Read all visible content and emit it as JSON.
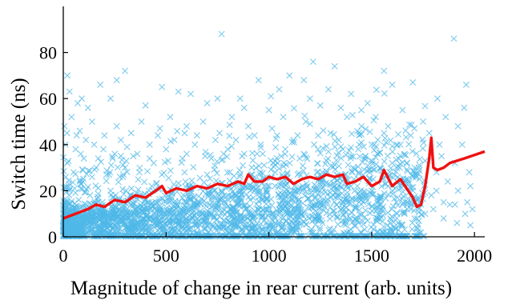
{
  "chart_data": {
    "type": "scatter",
    "title": "",
    "xlabel": "Magnitude of change in rear current (arb. units)",
    "ylabel": "Switch time (ns)",
    "xlim": [
      0,
      2050
    ],
    "ylim": [
      0,
      100
    ],
    "xticks": [
      0,
      500,
      1000,
      1500,
      2000
    ],
    "xtick_labels": [
      "0",
      "500",
      "1000",
      "1500",
      "2000"
    ],
    "yticks": [
      0,
      20,
      40,
      60,
      80
    ],
    "ytick_labels": [
      "0",
      "20",
      "40",
      "60",
      "80"
    ],
    "grid": false,
    "legend": "none",
    "series": [
      {
        "kind": "scatter",
        "marker": "x",
        "color": "#4fb8e8",
        "points": [
          [
            770,
            88
          ],
          [
            1900,
            86
          ],
          [
            1215,
            76
          ],
          [
            300,
            72
          ],
          [
            1320,
            74
          ],
          [
            1100,
            70
          ],
          [
            1560,
            72
          ],
          [
            20,
            70
          ],
          [
            180,
            66
          ],
          [
            950,
            68
          ],
          [
            1050,
            64
          ],
          [
            1700,
            67
          ],
          [
            1960,
            66
          ],
          [
            620,
            62
          ],
          [
            860,
            60
          ],
          [
            1400,
            62
          ],
          [
            1480,
            58
          ],
          [
            1600,
            66
          ],
          [
            1820,
            60
          ],
          [
            1650,
            55
          ],
          [
            90,
            60
          ],
          [
            400,
            57
          ],
          [
            700,
            58
          ],
          [
            1250,
            57
          ],
          [
            1750,
            50
          ],
          [
            1860,
            52
          ],
          [
            1950,
            56
          ],
          [
            1920,
            48
          ],
          [
            1780,
            45
          ],
          [
            1940,
            40
          ],
          [
            1975,
            28
          ],
          [
            1980,
            22
          ],
          [
            1850,
            15
          ],
          [
            1905,
            14
          ],
          [
            1955,
            10
          ],
          [
            1980,
            5
          ],
          [
            1700,
            20
          ],
          [
            1620,
            15
          ],
          [
            1760,
            10
          ],
          [
            1720,
            8
          ],
          [
            1560,
            45
          ],
          [
            1500,
            40
          ],
          [
            1450,
            48
          ],
          [
            1380,
            52
          ],
          [
            1300,
            45
          ],
          [
            1180,
            50
          ],
          [
            1120,
            42
          ],
          [
            1000,
            55
          ],
          [
            900,
            48
          ],
          [
            820,
            52
          ],
          [
            760,
            45
          ],
          [
            680,
            50
          ],
          [
            600,
            48
          ],
          [
            520,
            52
          ],
          [
            460,
            44
          ],
          [
            380,
            50
          ],
          [
            330,
            45
          ],
          [
            260,
            48
          ],
          [
            200,
            44
          ],
          [
            140,
            50
          ],
          [
            80,
            46
          ],
          [
            40,
            52
          ],
          [
            30,
            63
          ],
          [
            70,
            58
          ],
          [
            120,
            56
          ],
          [
            230,
            60
          ],
          [
            560,
            63
          ],
          [
            1350,
            56
          ],
          [
            1520,
            52
          ],
          [
            1580,
            48
          ],
          [
            1690,
            44
          ],
          [
            1660,
            36
          ],
          [
            1600,
            32
          ],
          [
            1540,
            30
          ],
          [
            1470,
            35
          ],
          [
            1410,
            30
          ],
          [
            1360,
            38
          ],
          [
            1280,
            33
          ],
          [
            1220,
            40
          ],
          [
            1150,
            34
          ],
          [
            1080,
            38
          ],
          [
            1020,
            32
          ],
          [
            960,
            40
          ],
          [
            880,
            36
          ],
          [
            800,
            38
          ],
          [
            720,
            34
          ],
          [
            640,
            40
          ],
          [
            580,
            34
          ],
          [
            500,
            38
          ],
          [
            440,
            32
          ],
          [
            360,
            36
          ],
          [
            300,
            30
          ],
          [
            240,
            34
          ],
          [
            160,
            30
          ],
          [
            100,
            34
          ],
          [
            50,
            28
          ],
          [
            20,
            32
          ],
          [
            10,
            40
          ],
          [
            60,
            38
          ],
          [
            150,
            40
          ],
          [
            280,
            42
          ],
          [
            420,
            40
          ],
          [
            540,
            42
          ],
          [
            650,
            44
          ],
          [
            740,
            42
          ],
          [
            840,
            42
          ],
          [
            930,
            44
          ],
          [
            1040,
            44
          ],
          [
            1140,
            44
          ],
          [
            1240,
            44
          ],
          [
            1340,
            42
          ],
          [
            1440,
            40
          ],
          [
            1640,
            40
          ],
          [
            1730,
            30
          ],
          [
            1700,
            26
          ],
          [
            1680,
            24
          ],
          [
            1640,
            25
          ],
          [
            1580,
            22
          ],
          [
            1500,
            20
          ],
          [
            1430,
            22
          ],
          [
            1330,
            20
          ],
          [
            1230,
            22
          ],
          [
            1130,
            20
          ],
          [
            1030,
            22
          ],
          [
            930,
            20
          ],
          [
            830,
            22
          ],
          [
            730,
            20
          ],
          [
            630,
            22
          ],
          [
            530,
            20
          ],
          [
            430,
            22
          ],
          [
            330,
            18
          ],
          [
            230,
            20
          ],
          [
            130,
            18
          ],
          [
            30,
            20
          ],
          [
            15,
            15
          ],
          [
            45,
            12
          ],
          [
            75,
            16
          ],
          [
            110,
            14
          ],
          [
            190,
            15
          ],
          [
            270,
            14
          ],
          [
            350,
            12
          ],
          [
            450,
            14
          ],
          [
            550,
            12
          ],
          [
            650,
            14
          ],
          [
            750,
            12
          ],
          [
            850,
            14
          ],
          [
            950,
            12
          ],
          [
            1050,
            14
          ],
          [
            1150,
            12
          ],
          [
            1250,
            14
          ],
          [
            1350,
            12
          ],
          [
            1450,
            14
          ],
          [
            1550,
            12
          ],
          [
            1650,
            14
          ],
          [
            1740,
            14
          ],
          [
            1800,
            12
          ],
          [
            1850,
            8
          ],
          [
            1880,
            14
          ],
          [
            1920,
            20
          ],
          [
            1790,
            18
          ],
          [
            1720,
            4
          ],
          [
            1630,
            6
          ],
          [
            1530,
            8
          ],
          [
            1430,
            7
          ],
          [
            1330,
            9
          ],
          [
            1230,
            8
          ],
          [
            1130,
            9
          ],
          [
            1030,
            8
          ],
          [
            930,
            9
          ],
          [
            830,
            8
          ],
          [
            730,
            9
          ],
          [
            630,
            8
          ],
          [
            530,
            9
          ],
          [
            430,
            8
          ],
          [
            330,
            7
          ],
          [
            230,
            8
          ],
          [
            130,
            7
          ],
          [
            60,
            6
          ],
          [
            25,
            4
          ],
          [
            5,
            8
          ],
          [
            8,
            2
          ],
          [
            35,
            1
          ],
          [
            90,
            3
          ],
          [
            170,
            5
          ],
          [
            260,
            6
          ],
          [
            360,
            6
          ],
          [
            470,
            7
          ],
          [
            580,
            7
          ],
          [
            690,
            7
          ],
          [
            800,
            7
          ],
          [
            910,
            7
          ],
          [
            1020,
            7
          ],
          [
            1130,
            7
          ],
          [
            1240,
            7
          ],
          [
            1360,
            7
          ],
          [
            1480,
            7
          ],
          [
            1590,
            8
          ],
          [
            1660,
            10
          ],
          [
            1690,
            12
          ],
          [
            12,
            26
          ],
          [
            28,
            23
          ],
          [
            55,
            21
          ],
          [
            95,
            24
          ],
          [
            140,
            26
          ],
          [
            210,
            27
          ],
          [
            290,
            26
          ],
          [
            370,
            28
          ],
          [
            480,
            27
          ],
          [
            590,
            28
          ],
          [
            700,
            27
          ],
          [
            810,
            28
          ],
          [
            920,
            27
          ],
          [
            1030,
            28
          ],
          [
            1140,
            27
          ],
          [
            1260,
            28
          ],
          [
            1370,
            27
          ],
          [
            1490,
            28
          ],
          [
            1610,
            27
          ],
          [
            1530,
            36
          ],
          [
            1400,
            35
          ],
          [
            1290,
            37
          ],
          [
            1170,
            36
          ],
          [
            1060,
            35
          ],
          [
            970,
            36
          ],
          [
            870,
            35
          ],
          [
            780,
            36
          ],
          [
            690,
            35
          ],
          [
            600,
            36
          ],
          [
            510,
            33
          ],
          [
            420,
            34
          ],
          [
            340,
            35
          ],
          [
            250,
            36
          ],
          [
            170,
            34
          ],
          [
            85,
            36
          ],
          [
            5,
            48
          ],
          [
            18,
            45
          ],
          [
            110,
            42
          ],
          [
            65,
            44
          ],
          [
            195,
            38
          ],
          [
            310,
            39
          ],
          [
            470,
            47
          ],
          [
            590,
            45
          ],
          [
            880,
            56
          ],
          [
            1070,
            52
          ],
          [
            1200,
            60
          ],
          [
            1450,
            55
          ],
          [
            1290,
            64
          ],
          [
            1010,
            61
          ],
          [
            750,
            60
          ],
          [
            480,
            65
          ],
          [
            260,
            68
          ],
          [
            1170,
            68
          ],
          [
            1830,
            40
          ],
          [
            1905,
            32
          ],
          [
            1815,
            28
          ],
          [
            1760,
            33
          ],
          [
            1965,
            15
          ],
          [
            1915,
            6
          ],
          [
            1870,
            24
          ],
          [
            1755,
            22
          ],
          [
            1815,
            20
          ],
          [
            1990,
            12
          ],
          [
            1840,
            35
          ]
        ]
      },
      {
        "kind": "line",
        "name": "",
        "color": "#ee1111",
        "points": [
          [
            0,
            8
          ],
          [
            60,
            10
          ],
          [
            120,
            12
          ],
          [
            160,
            14
          ],
          [
            200,
            13
          ],
          [
            250,
            16
          ],
          [
            300,
            15
          ],
          [
            350,
            18
          ],
          [
            400,
            17
          ],
          [
            450,
            20
          ],
          [
            480,
            22
          ],
          [
            500,
            19
          ],
          [
            550,
            21
          ],
          [
            600,
            20
          ],
          [
            650,
            22
          ],
          [
            700,
            21
          ],
          [
            750,
            23
          ],
          [
            800,
            22
          ],
          [
            850,
            24
          ],
          [
            880,
            23
          ],
          [
            900,
            27
          ],
          [
            930,
            24
          ],
          [
            970,
            24
          ],
          [
            1000,
            26
          ],
          [
            1040,
            25
          ],
          [
            1080,
            26
          ],
          [
            1120,
            23
          ],
          [
            1160,
            25
          ],
          [
            1200,
            26
          ],
          [
            1240,
            25
          ],
          [
            1280,
            27
          ],
          [
            1320,
            26
          ],
          [
            1360,
            27
          ],
          [
            1380,
            23
          ],
          [
            1420,
            24
          ],
          [
            1460,
            26
          ],
          [
            1500,
            22
          ],
          [
            1540,
            24
          ],
          [
            1560,
            29
          ],
          [
            1600,
            22
          ],
          [
            1640,
            25
          ],
          [
            1670,
            21
          ],
          [
            1700,
            17
          ],
          [
            1720,
            13
          ],
          [
            1740,
            14
          ],
          [
            1760,
            22
          ],
          [
            1780,
            34
          ],
          [
            1790,
            43
          ],
          [
            1800,
            30
          ],
          [
            1820,
            29
          ],
          [
            1850,
            30
          ],
          [
            1880,
            32
          ],
          [
            1950,
            34
          ],
          [
            2050,
            37
          ]
        ]
      }
    ]
  }
}
